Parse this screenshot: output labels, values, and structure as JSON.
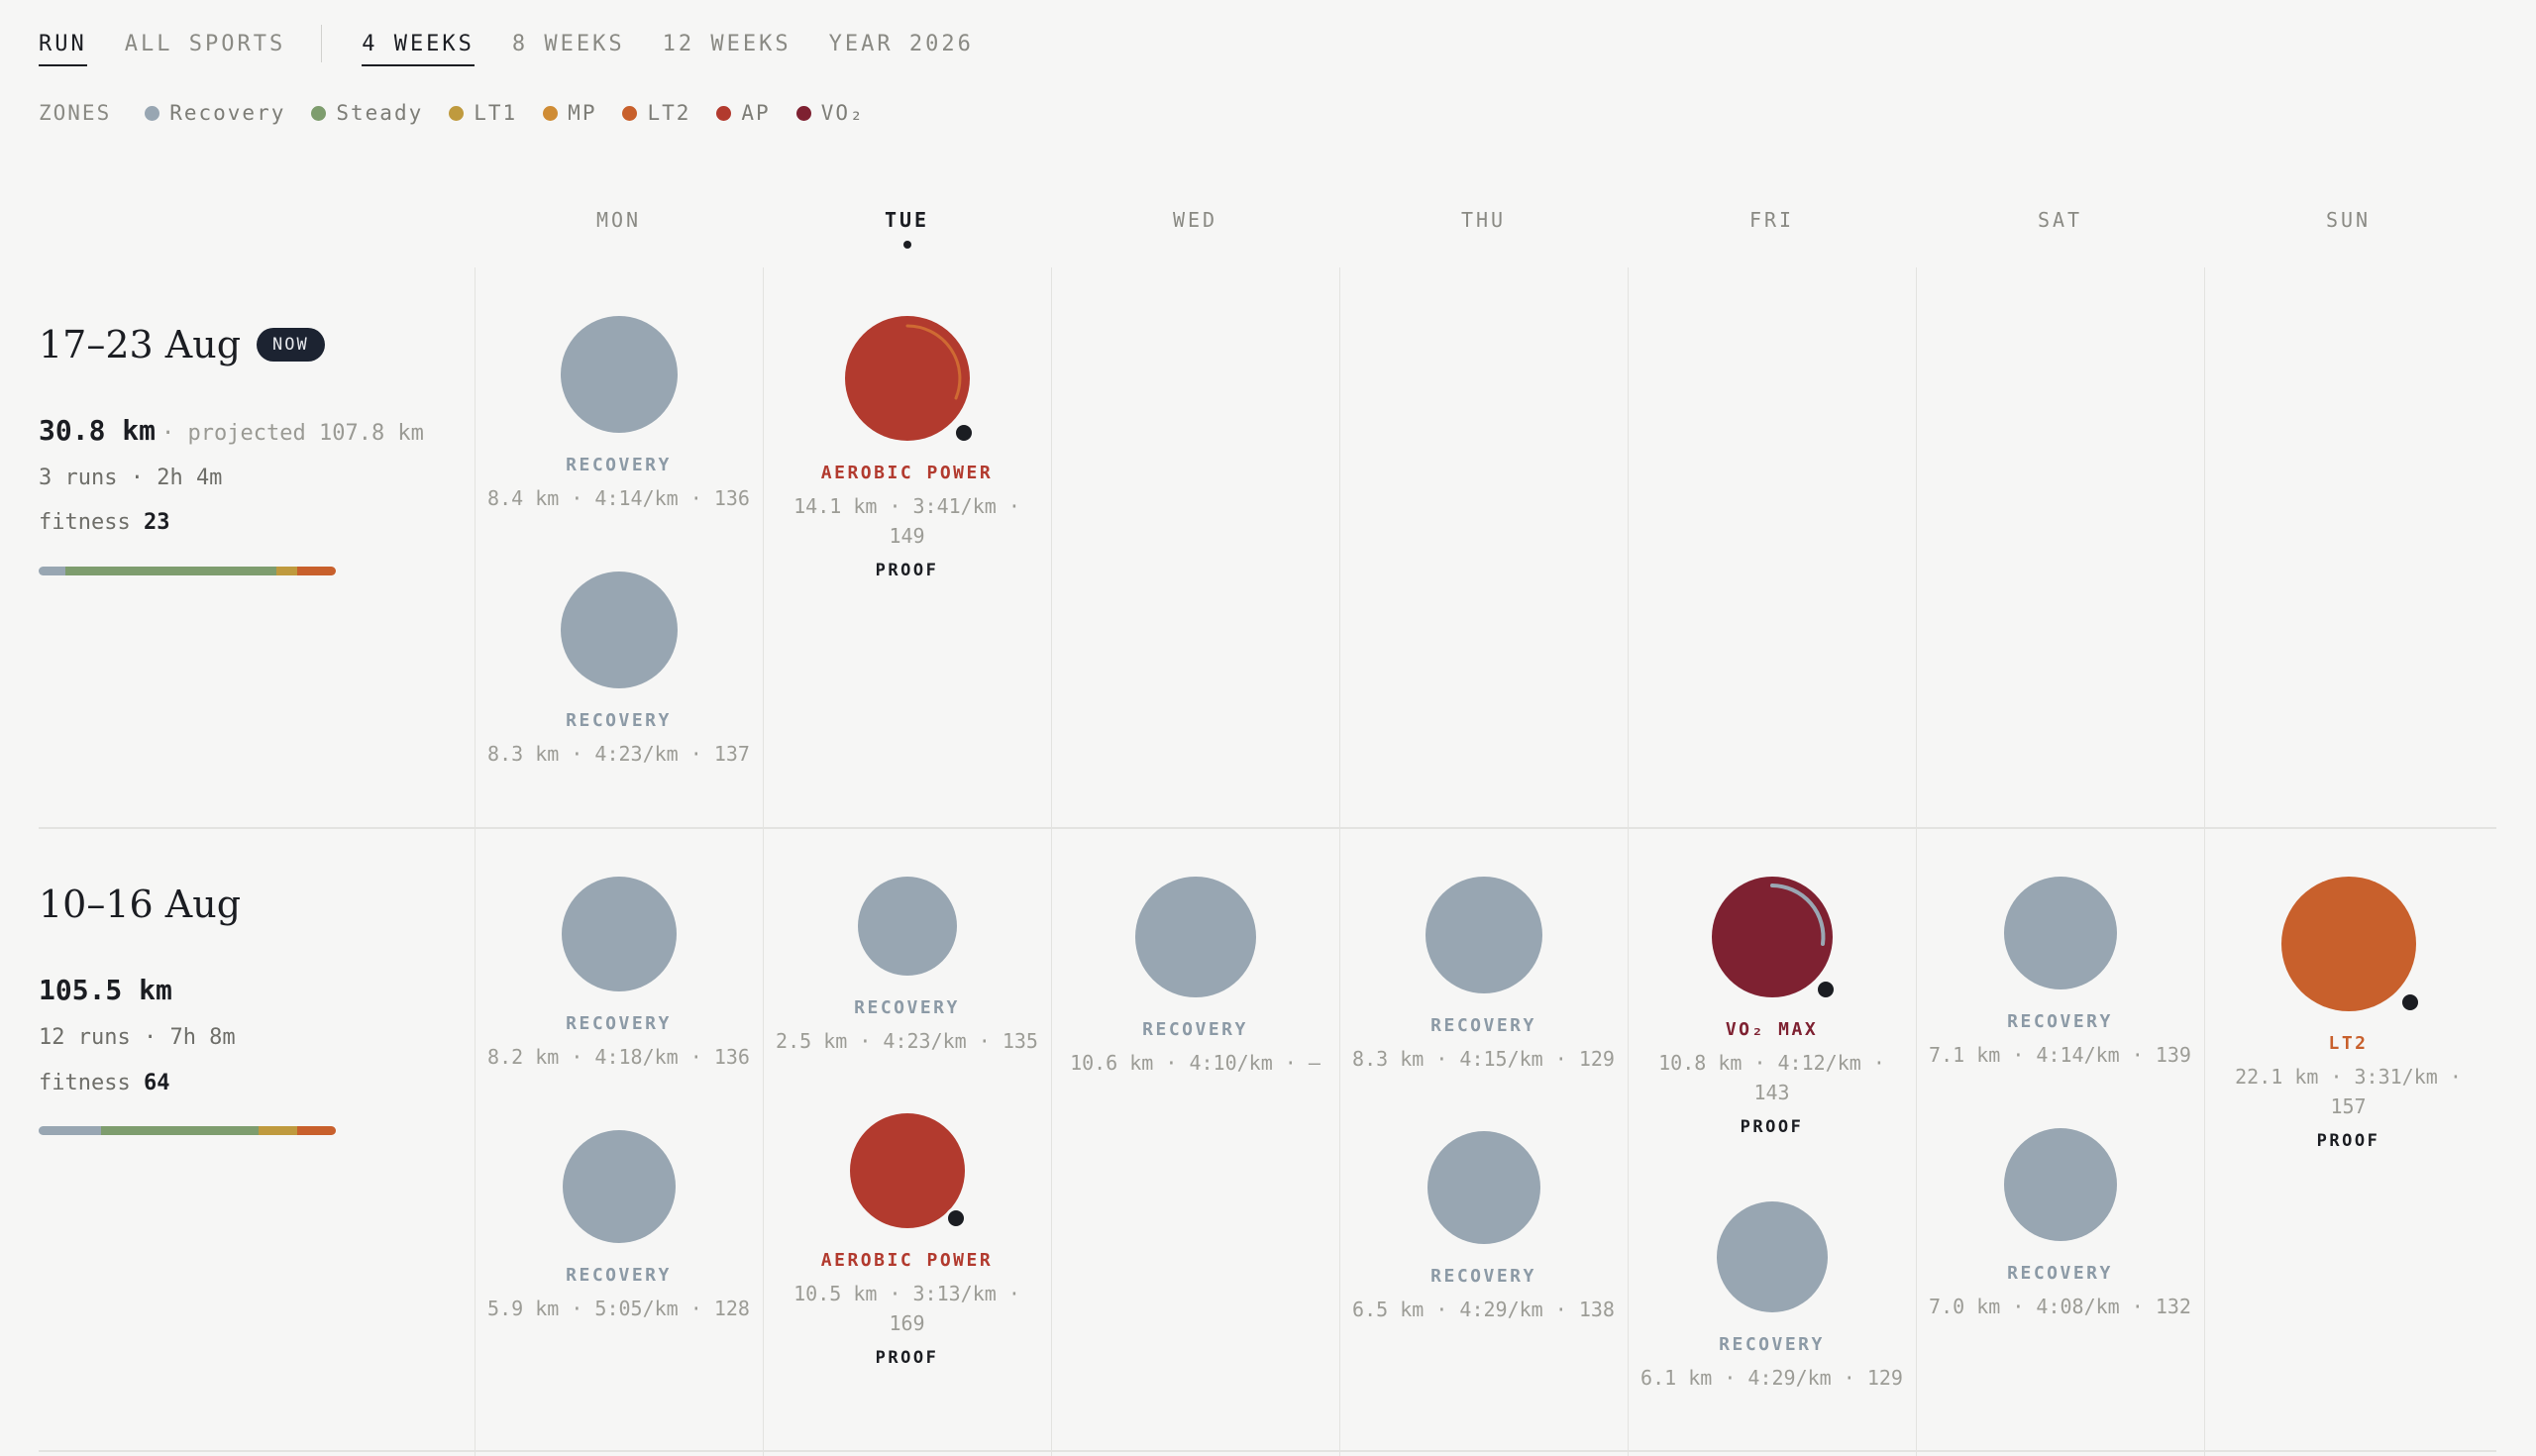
{
  "nav": {
    "sport_tabs": [
      "RUN",
      "ALL SPORTS"
    ],
    "range_tabs": [
      "4 WEEKS",
      "8 WEEKS",
      "12 WEEKS",
      "YEAR 2026"
    ]
  },
  "zones": {
    "label": "ZONES",
    "items": [
      {
        "name": "Recovery",
        "color": "#98a6b2"
      },
      {
        "name": "Steady",
        "color": "#7e9d6e"
      },
      {
        "name": "LT1",
        "color": "#bf9a3e"
      },
      {
        "name": "MP",
        "color": "#cf8c35"
      },
      {
        "name": "LT2",
        "color": "#c8602c"
      },
      {
        "name": "AP",
        "color": "#b23a2e"
      },
      {
        "name": "VO₂",
        "color": "#7e2131"
      }
    ]
  },
  "days": [
    "MON",
    "TUE",
    "WED",
    "THU",
    "FRI",
    "SAT",
    "SUN"
  ],
  "weeks": [
    {
      "title": "17–23 Aug",
      "badge": "NOW",
      "distance": "30.8 km",
      "projected": "· projected 107.8 km",
      "runs": "3 runs · 2h 4m",
      "fitness_label": "fitness",
      "fitness": "23",
      "zone_mix": [
        {
          "zone": "Recovery",
          "share": 0.09
        },
        {
          "zone": "Steady",
          "share": 0.71
        },
        {
          "zone": "LT1",
          "share": 0.07
        },
        {
          "zone": "LT2",
          "share": 0.13
        }
      ],
      "workouts": {
        "mon_1": {
          "type": "RECOVERY",
          "stats": "8.4 km · 4:14/km · 136"
        },
        "mon_2": {
          "type": "RECOVERY",
          "stats": "8.3 km · 4:23/km · 137"
        },
        "tue_1": {
          "type": "AEROBIC POWER",
          "stats": "14.1 km · 3:41/km · 149",
          "tag": "PROOF"
        }
      }
    },
    {
      "title": "10–16 Aug",
      "distance": "105.5 km",
      "runs": "12 runs · 7h 8m",
      "fitness_label": "fitness",
      "fitness": "64",
      "zone_mix": [
        {
          "zone": "Recovery",
          "share": 0.21
        },
        {
          "zone": "Steady",
          "share": 0.53
        },
        {
          "zone": "LT1",
          "share": 0.13
        },
        {
          "zone": "LT2",
          "share": 0.13
        }
      ],
      "workouts": {
        "mon_1": {
          "type": "RECOVERY",
          "stats": "8.2 km · 4:18/km · 136"
        },
        "mon_2": {
          "type": "RECOVERY",
          "stats": "5.9 km · 5:05/km · 128"
        },
        "tue_1": {
          "type": "RECOVERY",
          "stats": "2.5 km · 4:23/km · 135"
        },
        "tue_2": {
          "type": "AEROBIC POWER",
          "stats": "10.5 km · 3:13/km · 169",
          "tag": "PROOF"
        },
        "wed_1": {
          "type": "RECOVERY",
          "stats": "10.6 km · 4:10/km · –"
        },
        "thu_1": {
          "type": "RECOVERY",
          "stats": "8.3 km · 4:15/km · 129"
        },
        "thu_2": {
          "type": "RECOVERY",
          "stats": "6.5 km · 4:29/km · 138"
        },
        "fri_1": {
          "type": "VO₂ MAX",
          "stats": "10.8 km · 4:12/km · 143",
          "tag": "PROOF"
        },
        "fri_2": {
          "type": "RECOVERY",
          "stats": "6.1 km · 4:29/km · 129"
        },
        "sat_1": {
          "type": "RECOVERY",
          "stats": "7.1 km · 4:14/km · 139"
        },
        "sat_2": {
          "type": "RECOVERY",
          "stats": "7.0 km · 4:08/km · 132"
        },
        "sun_1": {
          "type": "LT2",
          "stats": "22.1 km · 3:31/km · 157",
          "tag": "PROOF"
        }
      }
    }
  ]
}
